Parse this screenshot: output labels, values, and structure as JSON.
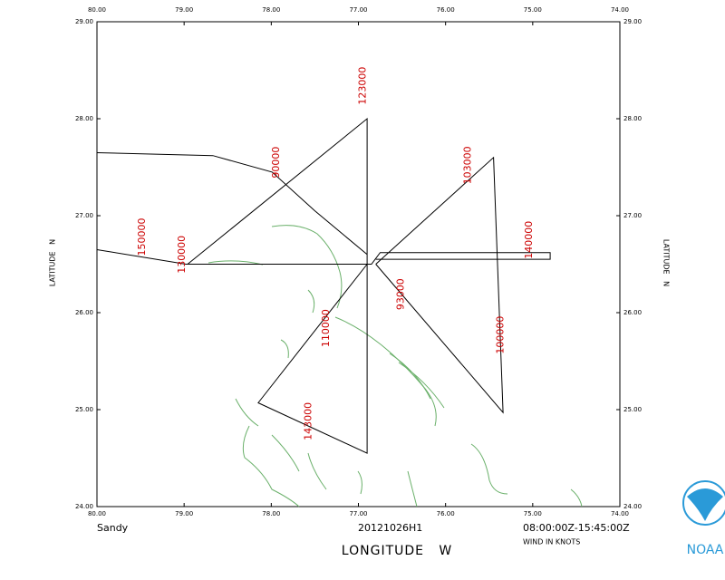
{
  "chart_data": {
    "type": "track",
    "title": "Sandy",
    "flight": "20121026H1",
    "time_range": "08:00:00Z-15:45:00Z",
    "wind_note": "WIND IN KNOTS",
    "x_label": "LONGITUDE   W",
    "y_label": "LATITUDE   N",
    "logo": "NOAA",
    "xlim": [
      80,
      74
    ],
    "ylim": [
      24,
      29
    ],
    "xticks": [
      {
        "value": 80,
        "label": "80.00"
      },
      {
        "value": 79,
        "label": "79.00"
      },
      {
        "value": 78,
        "label": "78.00"
      },
      {
        "value": 77,
        "label": "77.00"
      },
      {
        "value": 76,
        "label": "76.00"
      },
      {
        "value": 75,
        "label": "75.00"
      },
      {
        "value": 74,
        "label": "74.00"
      }
    ],
    "yticks": [
      {
        "value": 24,
        "label": "24.00"
      },
      {
        "value": 25,
        "label": "25.00"
      },
      {
        "value": 26,
        "label": "26.00"
      },
      {
        "value": 27,
        "label": "27.00"
      },
      {
        "value": 28,
        "label": "28.00"
      },
      {
        "value": 29,
        "label": "29.00"
      }
    ],
    "track_color": "#000000",
    "annotation_color": "#cc0000",
    "track": {
      "x": [
        80,
        78.67,
        77.99,
        77.5,
        76.9,
        null,
        80,
        78.98,
        76.85,
        76.75,
        74.8,
        74.8,
        76.8,
        null,
        76.9,
        76.9,
        78.96,
        null,
        76.8,
        75.45,
        75.34,
        76.8,
        null,
        76.9,
        76.9,
        78.15,
        76.9
      ],
      "y": [
        27.65,
        27.62,
        27.45,
        27.05,
        26.6,
        null,
        26.65,
        26.5,
        26.5,
        26.62,
        26.62,
        26.55,
        26.55,
        null,
        26.5,
        28.0,
        26.5,
        null,
        26.5,
        27.6,
        24.97,
        26.5,
        null,
        26.5,
        24.55,
        25.07,
        26.5
      ]
    },
    "annotations": [
      {
        "text": "150000",
        "x": 79.48,
        "y": 26.78
      },
      {
        "text": "130000",
        "x": 79.02,
        "y": 26.6
      },
      {
        "text": "123000",
        "x": 76.95,
        "y": 28.34
      },
      {
        "text": "90000",
        "x": 77.94,
        "y": 27.55
      },
      {
        "text": "103000",
        "x": 75.74,
        "y": 27.52
      },
      {
        "text": "140000",
        "x": 75.04,
        "y": 26.75
      },
      {
        "text": "100000",
        "x": 75.37,
        "y": 25.77
      },
      {
        "text": "93000",
        "x": 76.51,
        "y": 26.19
      },
      {
        "text": "110000",
        "x": 77.37,
        "y": 25.84
      },
      {
        "text": "143000",
        "x": 77.57,
        "y": 24.88
      }
    ]
  }
}
